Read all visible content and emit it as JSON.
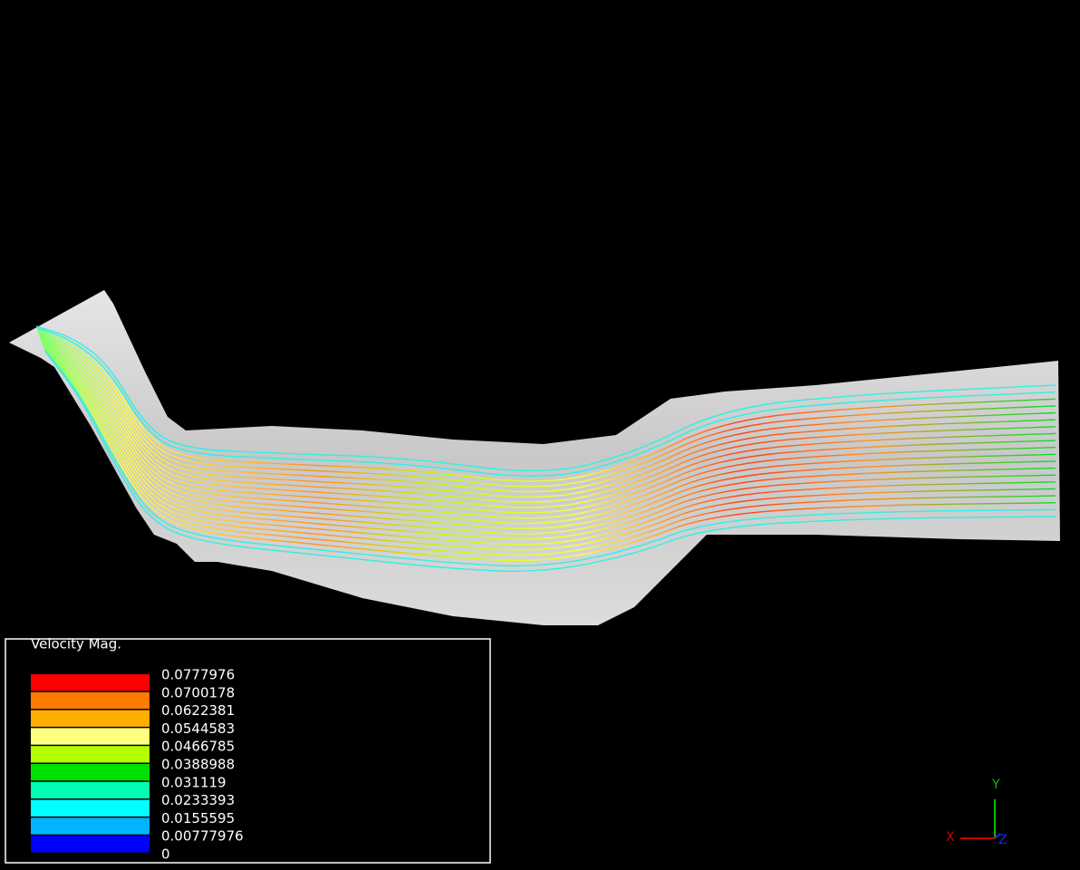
{
  "legend": {
    "title": "Velocity Mag.",
    "labels": [
      "0.0777976",
      "0.0700178",
      "0.0622381",
      "0.0544583",
      "0.0466785",
      "0.0388988",
      "0.031119",
      "0.0233393",
      "0.0155595",
      "0.00777976",
      "0"
    ],
    "colors": [
      "#ff0000",
      "#ff7a00",
      "#ffae00",
      "#ffff80",
      "#b4ff00",
      "#00e000",
      "#00ffb4",
      "#00ffff",
      "#00b4ff",
      "#0000ff"
    ]
  },
  "axes": {
    "x": "X",
    "y": "Y",
    "z": "Z"
  }
}
